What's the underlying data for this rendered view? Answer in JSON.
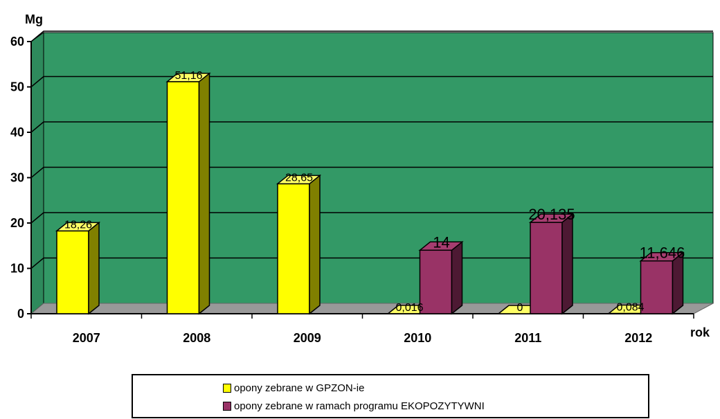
{
  "chart_data": {
    "type": "bar",
    "categories": [
      "2007",
      "2008",
      "2009",
      "2010",
      "2011",
      "2012"
    ],
    "series": [
      {
        "name": "opony zebrane w GPZON-ie",
        "values": [
          18.26,
          51.16,
          28.65,
          0.016,
          0,
          0.084
        ],
        "labels": [
          "18,26",
          "51,16",
          "28,65",
          "0,016",
          "0",
          "0,084"
        ]
      },
      {
        "name": "opony zebrane w ramach programu EKOPOZYTYWNI",
        "values": [
          null,
          null,
          null,
          14,
          20.135,
          11.646
        ],
        "labels": [
          "",
          "",
          "",
          "14",
          "20,135",
          "11,646"
        ]
      }
    ],
    "ylabel": "Mg",
    "xlabel": "rok",
    "ylim": [
      0,
      60
    ],
    "yticks": [
      "0",
      "10",
      "20",
      "30",
      "40",
      "50",
      "60"
    ],
    "grid": true,
    "legend_position": "bottom",
    "colors": {
      "plot_background": "#339966",
      "floor": "#999999",
      "series1_front": "#FFFF00",
      "series1_side": "#808000",
      "series2_front": "#993366",
      "series2_side": "#4D1933"
    }
  },
  "legend": {
    "items": [
      {
        "label": "opony zebrane w GPZON-ie"
      },
      {
        "label": "opony zebrane w ramach programu EKOPOZYTYWNI"
      }
    ]
  }
}
